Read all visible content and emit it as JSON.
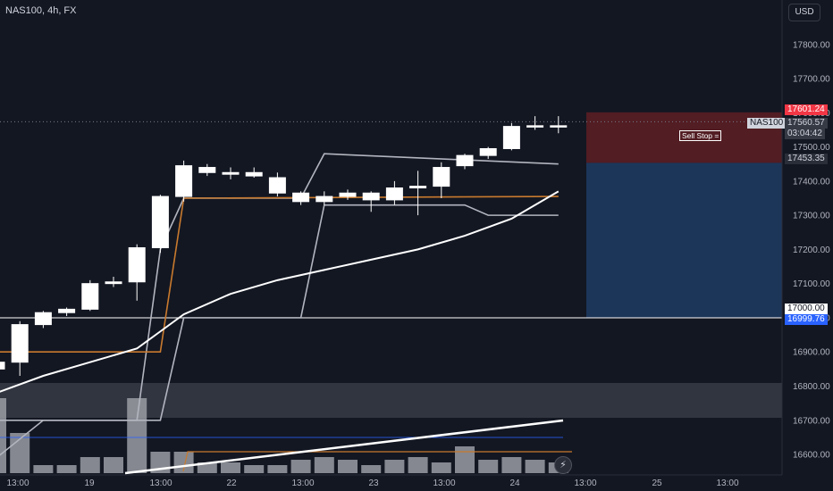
{
  "header": {
    "symbol_line": "NAS100, 4h, FX",
    "currency_button": "USD"
  },
  "labels": {
    "price_top": "17601.24",
    "current_price": "17560.57",
    "countdown": "03:04:42",
    "symbol_tag": "NAS100",
    "level_17453": "17453.35",
    "level_17000": "17000.00",
    "level_16999": "16999.76",
    "sell_stop": "Sell Stop ="
  },
  "colors": {
    "background": "#131722",
    "candle_body": "#ffffff",
    "stop_zone": "#5a1e24",
    "target_zone": "#1e3a5f",
    "price_top_tag": "#f23645",
    "price_bottom_tag": "#2962ff",
    "orange_line": "#c97a2e",
    "volume_bars": "#9a9ca3"
  },
  "chart_data": {
    "type": "candlestick",
    "title": "NAS100, 4h, FX",
    "y_ticks": [
      17800,
      17700,
      17600,
      17500,
      17400,
      17300,
      17200,
      17100,
      17000,
      16900,
      16800,
      16700,
      16600
    ],
    "x_ticks": [
      "13:00",
      "19",
      "13:00",
      "22",
      "13:00",
      "23",
      "13:00",
      "24",
      "13:00",
      "25",
      "13:00"
    ],
    "ylim": [
      16540,
      17930
    ],
    "candles": [
      [
        16850,
        16885,
        16830,
        16870
      ],
      [
        16870,
        16990,
        16830,
        16980
      ],
      [
        16980,
        17020,
        16970,
        17015
      ],
      [
        17015,
        17030,
        17005,
        17025
      ],
      [
        17025,
        17110,
        17020,
        17100
      ],
      [
        17100,
        17120,
        17090,
        17105
      ],
      [
        17105,
        17215,
        17050,
        17205
      ],
      [
        17205,
        17360,
        17190,
        17355
      ],
      [
        17355,
        17460,
        17340,
        17445
      ],
      [
        17440,
        17450,
        17415,
        17425
      ],
      [
        17425,
        17440,
        17405,
        17420
      ],
      [
        17425,
        17440,
        17410,
        17415
      ],
      [
        17410,
        17425,
        17355,
        17365
      ],
      [
        17365,
        17370,
        17330,
        17340
      ],
      [
        17340,
        17370,
        17330,
        17355
      ],
      [
        17355,
        17375,
        17345,
        17365
      ],
      [
        17365,
        17370,
        17310,
        17345
      ],
      [
        17345,
        17400,
        17330,
        17380
      ],
      [
        17385,
        17430,
        17300,
        17380
      ],
      [
        17385,
        17455,
        17350,
        17440
      ],
      [
        17445,
        17480,
        17435,
        17475
      ],
      [
        17475,
        17500,
        17465,
        17495
      ],
      [
        17495,
        17570,
        17490,
        17560
      ],
      [
        17560,
        17590,
        17550,
        17562
      ],
      [
        17562,
        17590,
        17540,
        17560
      ]
    ],
    "volume_scale": [
      0,
      100
    ],
    "volume": [
      28,
      15,
      3,
      3,
      6,
      6,
      28,
      8,
      8,
      4,
      4,
      3,
      3,
      5,
      6,
      5,
      3,
      5,
      6,
      4,
      10,
      5,
      6,
      5,
      4
    ],
    "levels": {
      "stop": 17601.24,
      "entry": 17453.35,
      "target": 17000.0,
      "horizontal_line": 17000.0
    },
    "series": [
      {
        "name": "",
        "kind": "upper-channel",
        "points": [
          [
            0,
            16700
          ],
          [
            6,
            16700
          ],
          [
            7,
            17200
          ],
          [
            8,
            17350
          ],
          [
            13,
            17350
          ],
          [
            14,
            17480
          ],
          [
            24,
            17450
          ]
        ]
      },
      {
        "name": "",
        "kind": "lower-channel",
        "points": [
          [
            0,
            16590
          ],
          [
            2,
            16700
          ],
          [
            7,
            16700
          ],
          [
            8,
            17000
          ],
          [
            13,
            17000
          ],
          [
            14,
            17330
          ],
          [
            20,
            17330
          ],
          [
            21,
            17300
          ],
          [
            24,
            17300
          ]
        ]
      },
      {
        "name": "",
        "kind": "orange",
        "points": [
          [
            0,
            16900
          ],
          [
            7,
            16900
          ],
          [
            8,
            17350
          ],
          [
            24,
            17355
          ]
        ]
      },
      {
        "name": "",
        "kind": "moving-average",
        "points": [
          [
            0,
            16780
          ],
          [
            2,
            16830
          ],
          [
            4,
            16870
          ],
          [
            6,
            16910
          ],
          [
            7,
            16960
          ],
          [
            8,
            17010
          ],
          [
            10,
            17070
          ],
          [
            12,
            17110
          ],
          [
            14,
            17140
          ],
          [
            16,
            17170
          ],
          [
            18,
            17200
          ],
          [
            20,
            17240
          ],
          [
            22,
            17290
          ],
          [
            24,
            17370
          ]
        ]
      }
    ]
  }
}
